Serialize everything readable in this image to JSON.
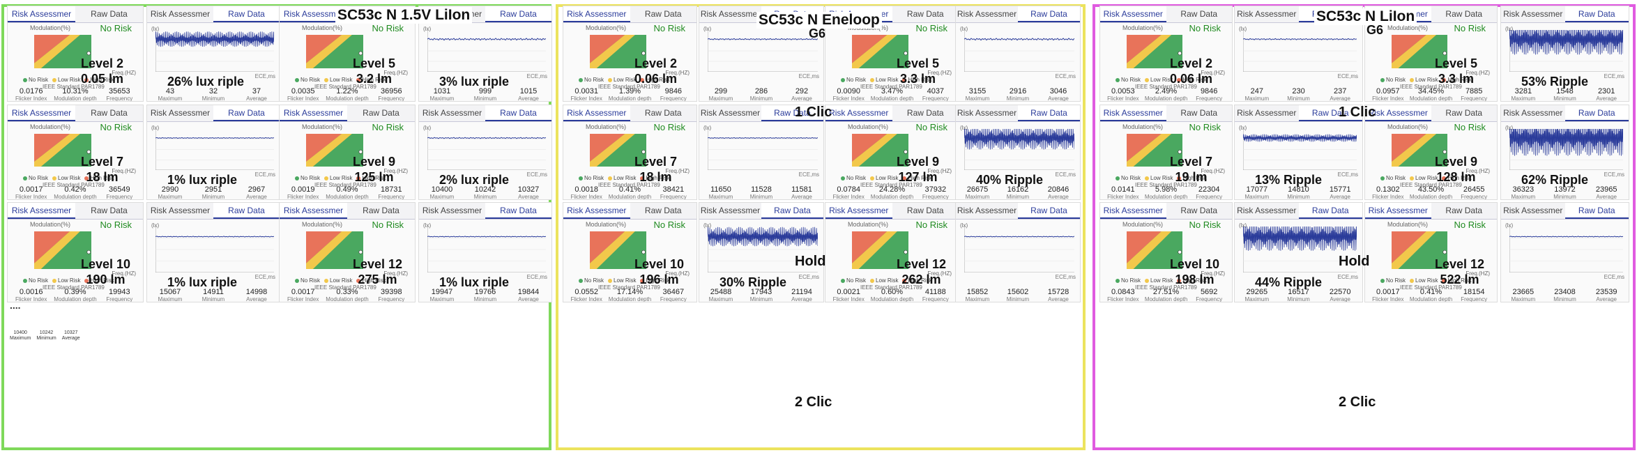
{
  "common": {
    "tab_risk": "Risk Assessmer",
    "tab_raw": "Raw Data",
    "mod_label": "Modulation(%)",
    "no_risk": "No Risk",
    "freq_label": "Freq.(HZ)",
    "legend_no": "No Risk",
    "legend_low": "Low Risk",
    "legend_high": "High Risk",
    "standard": "IEEE Standard PAR1789",
    "fi_label": "Flicker Index",
    "md_label": "Modulation depth",
    "fq_label": "Frequency",
    "max_label": "Maximum",
    "min_label": "Minimum",
    "avg_label": "Average",
    "lm_unit": "(lx)",
    "t_unit": "ECE,ms"
  },
  "colors": {
    "green_border": "#7fd95b",
    "yellow_border": "#ece35e",
    "magenta_border": "#e05be0",
    "safe": "#4aa860",
    "low": "#f2c84b",
    "high": "#e8735a",
    "wave": "#2a3b9a"
  },
  "groups": [
    {
      "title": "SC53c N 1.5V LiIon",
      "subtitle": "",
      "cells": [
        {
          "level": "Level 2",
          "lumen": "0.05 lm",
          "ripple": "26% lux riple",
          "fi": "0.0176",
          "md": "10.31%",
          "freq": "35653",
          "max": "43",
          "min": "32",
          "avg": "37",
          "amp": 0.26
        },
        {
          "level": "Level 5",
          "lumen": "3.2 lm",
          "ripple": "3% lux riple",
          "fi": "0.0035",
          "md": "1.22%",
          "freq": "36956",
          "max": "1031",
          "min": "999",
          "avg": "1015",
          "amp": 0.03
        },
        {
          "level": "Level 7",
          "lumen": "18 lm",
          "ripple": "1% lux riple",
          "fi": "0.0017",
          "md": "0.42%",
          "freq": "36549",
          "max": "2990",
          "min": "2951",
          "avg": "2967",
          "amp": 0.01
        },
        {
          "level": "Level 9",
          "lumen": "125 lm",
          "ripple": "2% lux riple",
          "fi": "0.0019",
          "md": "0.49%",
          "freq": "18731",
          "max": "10400",
          "min": "10242",
          "avg": "10327",
          "amp": 0.02
        },
        {
          "level": "Level 10",
          "lumen": "190 lm",
          "ripple": "1% lux riple",
          "fi": "0.0016",
          "md": "0.39%",
          "freq": "19943",
          "max": "15067",
          "min": "14911",
          "avg": "14998",
          "amp": 0.01
        },
        {
          "level": "Level 12",
          "lumen": "275 lm",
          "ripple": "1% lux riple",
          "fi": "0.0017",
          "md": "0.33%",
          "freq": "39398",
          "max": "19947",
          "min": "19766",
          "avg": "19844",
          "amp": 0.01
        }
      ],
      "mini": {
        "dots": "....",
        "max": "10400",
        "min": "10242",
        "avg": "10327"
      }
    },
    {
      "title": "SC53c N Eneloop",
      "subtitle": "G6",
      "mode1": "1 Clic",
      "mode2": "Hold",
      "mode3": "2 Clic",
      "cells": [
        {
          "level": "Level 2",
          "lumen": "0.06 lm",
          "ripple": "",
          "fi": "0.0031",
          "md": "1.39%",
          "freq": "9846",
          "max": "299",
          "min": "286",
          "avg": "292",
          "amp": 0.02
        },
        {
          "level": "Level 5",
          "lumen": "3.3 lm",
          "ripple": "",
          "fi": "0.0090",
          "md": "3.47%",
          "freq": "4037",
          "max": "3155",
          "min": "2916",
          "avg": "3046",
          "amp": 0.03
        },
        {
          "level": "Level 7",
          "lumen": "18 lm",
          "ripple": "",
          "fi": "0.0018",
          "md": "0.41%",
          "freq": "38421",
          "max": "11650",
          "min": "11528",
          "avg": "11581",
          "amp": 0.01
        },
        {
          "level": "Level 9",
          "lumen": "127 lm",
          "ripple": "40% Ripple",
          "fi": "0.0784",
          "md": "24.28%",
          "freq": "37932",
          "max": "26675",
          "min": "16162",
          "avg": "20846",
          "amp": 0.4
        },
        {
          "level": "Level 10",
          "lumen": "196 lm",
          "ripple": "30% Ripple",
          "fi": "0.0552",
          "md": "17.14%",
          "freq": "36467",
          "max": "25488",
          "min": "17943",
          "avg": "21194",
          "amp": 0.3
        },
        {
          "level": "Level 12",
          "lumen": "262 lm",
          "ripple": "",
          "fi": "0.0021",
          "md": "0.60%",
          "freq": "41188",
          "max": "15852",
          "min": "15602",
          "avg": "15728",
          "amp": 0.01
        }
      ]
    },
    {
      "title": "SC53c N LiIon",
      "subtitle": "G6",
      "mode1": "1 Clic",
      "mode2": "Hold",
      "mode3": "2 Clic",
      "cells": [
        {
          "level": "Level 2",
          "lumen": "0.06 lm",
          "ripple": "",
          "fi": "0.0053",
          "md": "2.49%",
          "freq": "9846",
          "max": "247",
          "min": "230",
          "avg": "237",
          "amp": 0.02
        },
        {
          "level": "Level 5",
          "lumen": "3.3 lm",
          "ripple": "53% Ripple",
          "fi": "0.0957",
          "md": "34.45%",
          "freq": "7885",
          "max": "3281",
          "min": "1548",
          "avg": "2301",
          "amp": 0.53
        },
        {
          "level": "Level 7",
          "lumen": "19 lm",
          "ripple": "13% Ripple",
          "fi": "0.0141",
          "md": "5.98%",
          "freq": "22304",
          "max": "17077",
          "min": "14810",
          "avg": "15771",
          "amp": 0.13
        },
        {
          "level": "Level 9",
          "lumen": "128 lm",
          "ripple": "62% Ripple",
          "fi": "0.1302",
          "md": "43.50%",
          "freq": "26455",
          "max": "36323",
          "min": "13972",
          "avg": "23965",
          "amp": 0.62
        },
        {
          "level": "Level 10",
          "lumen": "198 lm",
          "ripple": "44% Ripple",
          "fi": "0.0843",
          "md": "27.51%",
          "freq": "5692",
          "max": "29265",
          "min": "16517",
          "avg": "22570",
          "amp": 0.44
        },
        {
          "level": "Level 12",
          "lumen": "522 lm",
          "ripple": "",
          "fi": "0.0017",
          "md": "0.41%",
          "freq": "18154",
          "max": "23665",
          "min": "23408",
          "avg": "23539",
          "amp": 0.01
        }
      ]
    }
  ]
}
